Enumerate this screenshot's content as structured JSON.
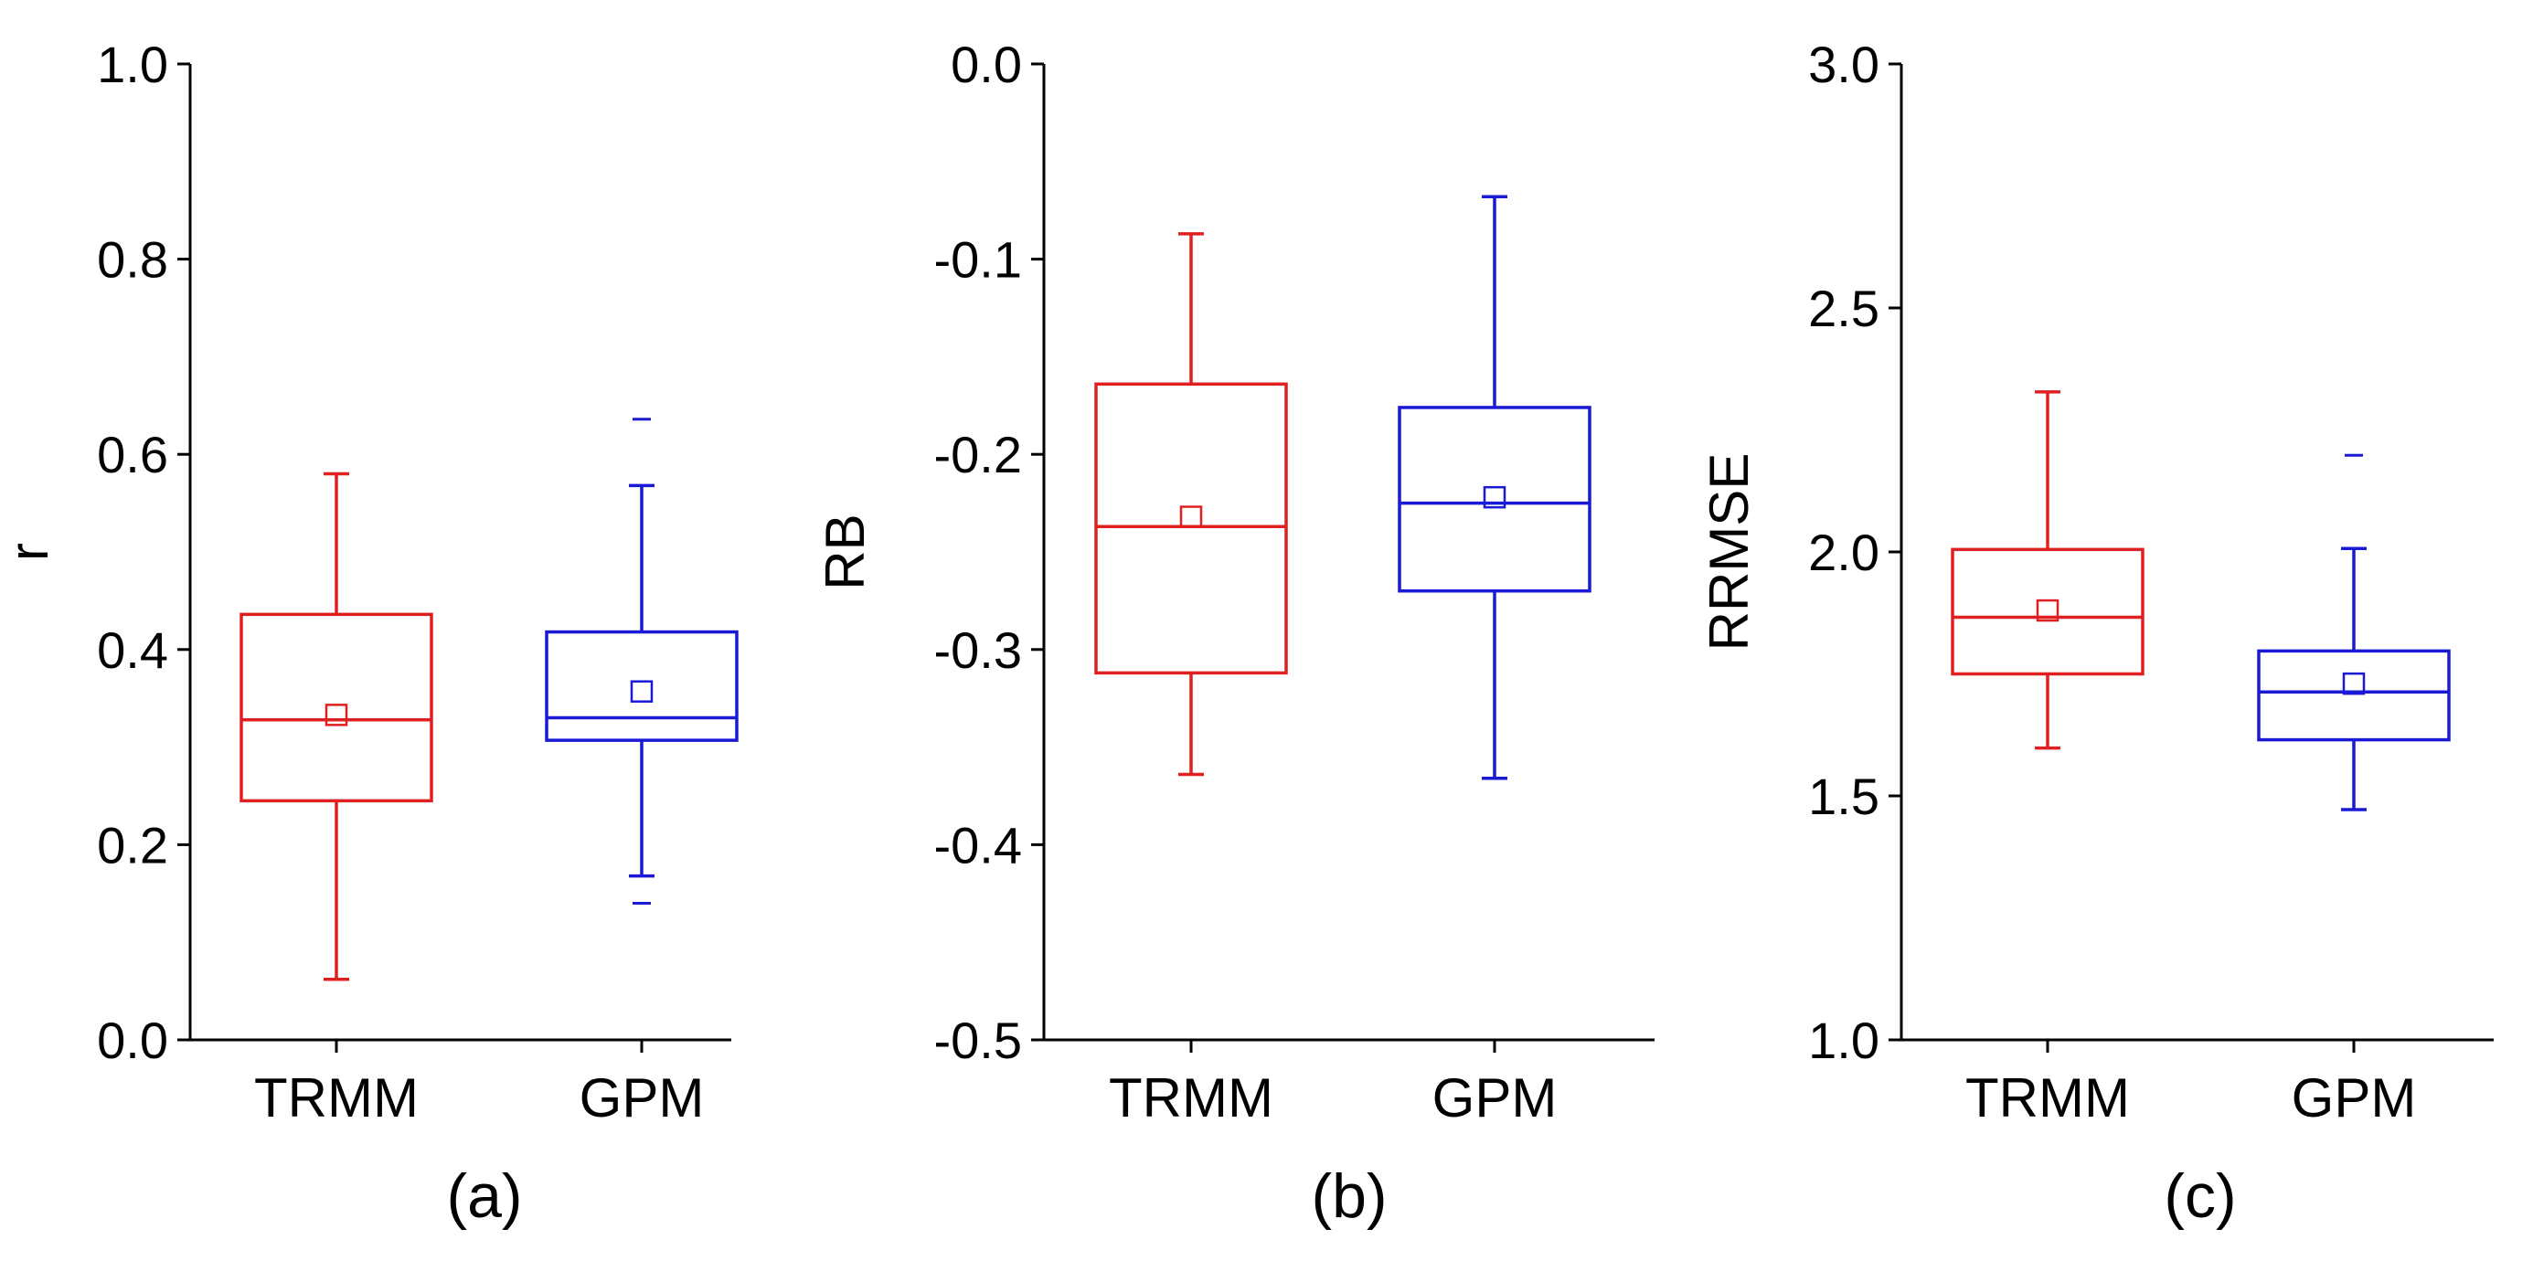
{
  "chart_data": [
    {
      "type": "box",
      "panel_label": "(a)",
      "ylabel": "r",
      "ylim": [
        0.0,
        1.0
      ],
      "yticks": [
        "0.0",
        "0.2",
        "0.4",
        "0.6",
        "0.8",
        "1.0"
      ],
      "categories": [
        "TRMM",
        "GPM"
      ],
      "series": [
        {
          "name": "TRMM",
          "color": "#e02020",
          "whisker_low": 0.062,
          "q1": 0.245,
          "median": 0.328,
          "q3": 0.436,
          "whisker_high": 0.58,
          "mean": 0.333,
          "outliers": []
        },
        {
          "name": "GPM",
          "color": "#1a1ad6",
          "whisker_low": 0.168,
          "q1": 0.307,
          "median": 0.33,
          "q3": 0.418,
          "whisker_high": 0.568,
          "mean": 0.357,
          "outliers": [
            0.14,
            0.636
          ]
        }
      ]
    },
    {
      "type": "box",
      "panel_label": "(b)",
      "ylabel": "RB",
      "ylim": [
        -0.5,
        0.0
      ],
      "yticks": [
        "-0.5",
        "-0.4",
        "-0.3",
        "-0.2",
        "-0.1",
        "0.0"
      ],
      "categories": [
        "TRMM",
        "GPM"
      ],
      "series": [
        {
          "name": "TRMM",
          "color": "#e02020",
          "whisker_low": -0.364,
          "q1": -0.312,
          "median": -0.237,
          "q3": -0.164,
          "whisker_high": -0.087,
          "mean": -0.232,
          "outliers": []
        },
        {
          "name": "GPM",
          "color": "#1a1ad6",
          "whisker_low": -0.366,
          "q1": -0.27,
          "median": -0.225,
          "q3": -0.176,
          "whisker_high": -0.068,
          "mean": -0.222,
          "outliers": []
        }
      ]
    },
    {
      "type": "box",
      "panel_label": "(c)",
      "ylabel": "RRMSE",
      "ylim": [
        1.0,
        3.0
      ],
      "yticks": [
        "1.0",
        "1.5",
        "2.0",
        "2.5",
        "3.0"
      ],
      "categories": [
        "TRMM",
        "GPM"
      ],
      "series": [
        {
          "name": "TRMM",
          "color": "#e02020",
          "whisker_low": 1.598,
          "q1": 1.75,
          "median": 1.866,
          "q3": 2.005,
          "whisker_high": 2.328,
          "mean": 1.88,
          "outliers": []
        },
        {
          "name": "GPM",
          "color": "#1a1ad6",
          "whisker_low": 1.472,
          "q1": 1.615,
          "median": 1.713,
          "q3": 1.797,
          "whisker_high": 2.007,
          "mean": 1.73,
          "outliers": [
            2.198
          ]
        }
      ]
    }
  ]
}
